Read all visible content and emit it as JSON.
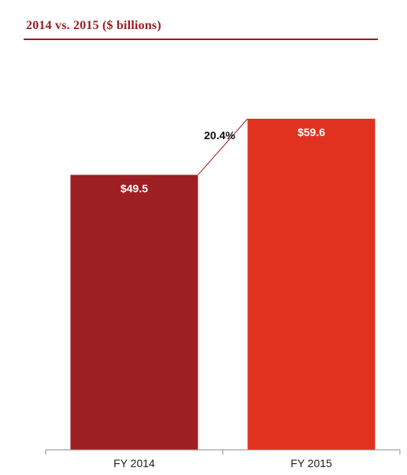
{
  "chart_data": {
    "type": "bar",
    "title": "2014 vs. 2015 ($ billions)",
    "categories": [
      "FY 2014",
      "FY 2015"
    ],
    "values": [
      49.5,
      59.6
    ],
    "value_labels": [
      "$49.5",
      "$59.6"
    ],
    "bar_colors": [
      "#9e1f23",
      "#e0321f"
    ],
    "annotation": {
      "text": "20.4%",
      "type": "growth-connector",
      "from": "FY 2014",
      "to": "FY 2015"
    },
    "xlabel": "",
    "ylabel": "",
    "ylim": [
      0,
      59.6
    ],
    "grid": false,
    "legend": "none"
  }
}
